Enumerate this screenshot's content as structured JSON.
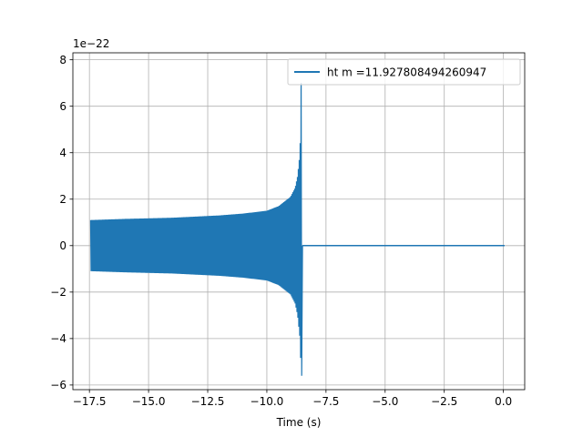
{
  "chart_data": {
    "type": "line",
    "title": "",
    "xlabel": "Time (s)",
    "ylabel": "",
    "y_offset_text": "1e−22",
    "xlim": [
      -18.2,
      0.9
    ],
    "ylim": [
      -6.2,
      8.3
    ],
    "y_scale_exponent": -22,
    "grid": true,
    "legend": {
      "placement": "top-right"
    },
    "x_ticks": [
      {
        "value": -17.5,
        "label": "−17.5"
      },
      {
        "value": -15.0,
        "label": "−15.0"
      },
      {
        "value": -12.5,
        "label": "−12.5"
      },
      {
        "value": -10.0,
        "label": "−10.0"
      },
      {
        "value": -7.5,
        "label": "−7.5"
      },
      {
        "value": -5.0,
        "label": "−5.0"
      },
      {
        "value": -2.5,
        "label": "−2.5"
      },
      {
        "value": 0.0,
        "label": "0.0"
      }
    ],
    "y_ticks": [
      {
        "value": -6,
        "label": "−6"
      },
      {
        "value": -4,
        "label": "−4"
      },
      {
        "value": -2,
        "label": "−2"
      },
      {
        "value": 0,
        "label": "0"
      },
      {
        "value": 2,
        "label": "2"
      },
      {
        "value": 4,
        "label": "4"
      },
      {
        "value": 6,
        "label": "6"
      },
      {
        "value": 8,
        "label": "8"
      }
    ],
    "series": [
      {
        "name": "ht m =11.927808494260947",
        "color": "#1f77b4",
        "t_start": -17.45,
        "t_merger": -8.55,
        "t_end": 0.05,
        "envelope_upper": [
          [
            -17.45,
            1.1
          ],
          [
            -16.0,
            1.15
          ],
          [
            -14.0,
            1.2
          ],
          [
            -12.0,
            1.3
          ],
          [
            -11.0,
            1.38
          ],
          [
            -10.0,
            1.5
          ],
          [
            -9.5,
            1.7
          ],
          [
            -9.0,
            2.1
          ],
          [
            -8.8,
            2.5
          ],
          [
            -8.7,
            3.0
          ],
          [
            -8.6,
            4.0
          ],
          [
            -8.55,
            7.0
          ]
        ],
        "envelope_lower": [
          [
            -17.45,
            -1.1
          ],
          [
            -16.0,
            -1.15
          ],
          [
            -14.0,
            -1.2
          ],
          [
            -12.0,
            -1.3
          ],
          [
            -11.0,
            -1.38
          ],
          [
            -10.0,
            -1.5
          ],
          [
            -9.5,
            -1.7
          ],
          [
            -9.0,
            -2.1
          ],
          [
            -8.8,
            -2.5
          ],
          [
            -8.7,
            -3.0
          ],
          [
            -8.6,
            -4.0
          ],
          [
            -8.55,
            -5.6
          ]
        ],
        "post_merger_value": 0.0
      }
    ]
  }
}
